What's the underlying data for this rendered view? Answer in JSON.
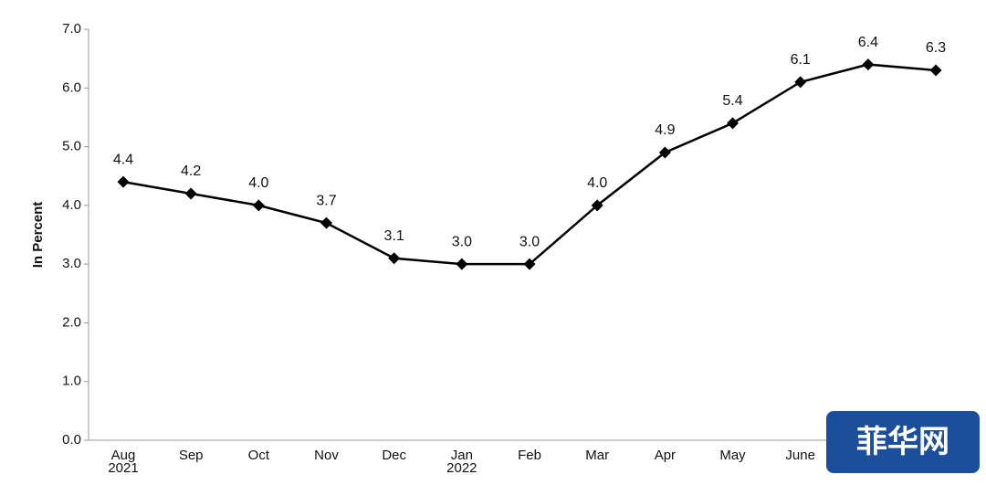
{
  "chart_data": {
    "type": "line",
    "y_label": "In Percent",
    "categories": [
      "Aug\n2021",
      "Sep",
      "Oct",
      "Nov",
      "Dec",
      "Jan\n2022",
      "Feb",
      "Mar",
      "Apr",
      "May",
      "June",
      null,
      null
    ],
    "series": [
      {
        "color": "#000000",
        "values": [
          4.4,
          4.2,
          4.0,
          3.7,
          3.1,
          3.0,
          3.0,
          4.0,
          4.9,
          5.4,
          6.1,
          6.4,
          6.3
        ],
        "value_labels": [
          "4.4",
          "4.2",
          "4.0",
          "3.7",
          "3.1",
          "3.0",
          "3.0",
          "4.0",
          "4.9",
          "5.4",
          "6.1",
          "6.4",
          "6.3"
        ]
      }
    ],
    "ylim": [
      0,
      7
    ],
    "yticks": [
      {
        "value": 0,
        "label": "0.0"
      },
      {
        "value": 1,
        "label": "1.0"
      },
      {
        "value": 2,
        "label": "2.0"
      },
      {
        "value": 3,
        "label": "3.0"
      },
      {
        "value": 4,
        "label": "4.0"
      },
      {
        "value": 5,
        "label": "5.0"
      },
      {
        "value": 6,
        "label": "6.0"
      },
      {
        "value": 7,
        "label": "7.0"
      }
    ],
    "grid": false,
    "watermark": "菲华网"
  }
}
